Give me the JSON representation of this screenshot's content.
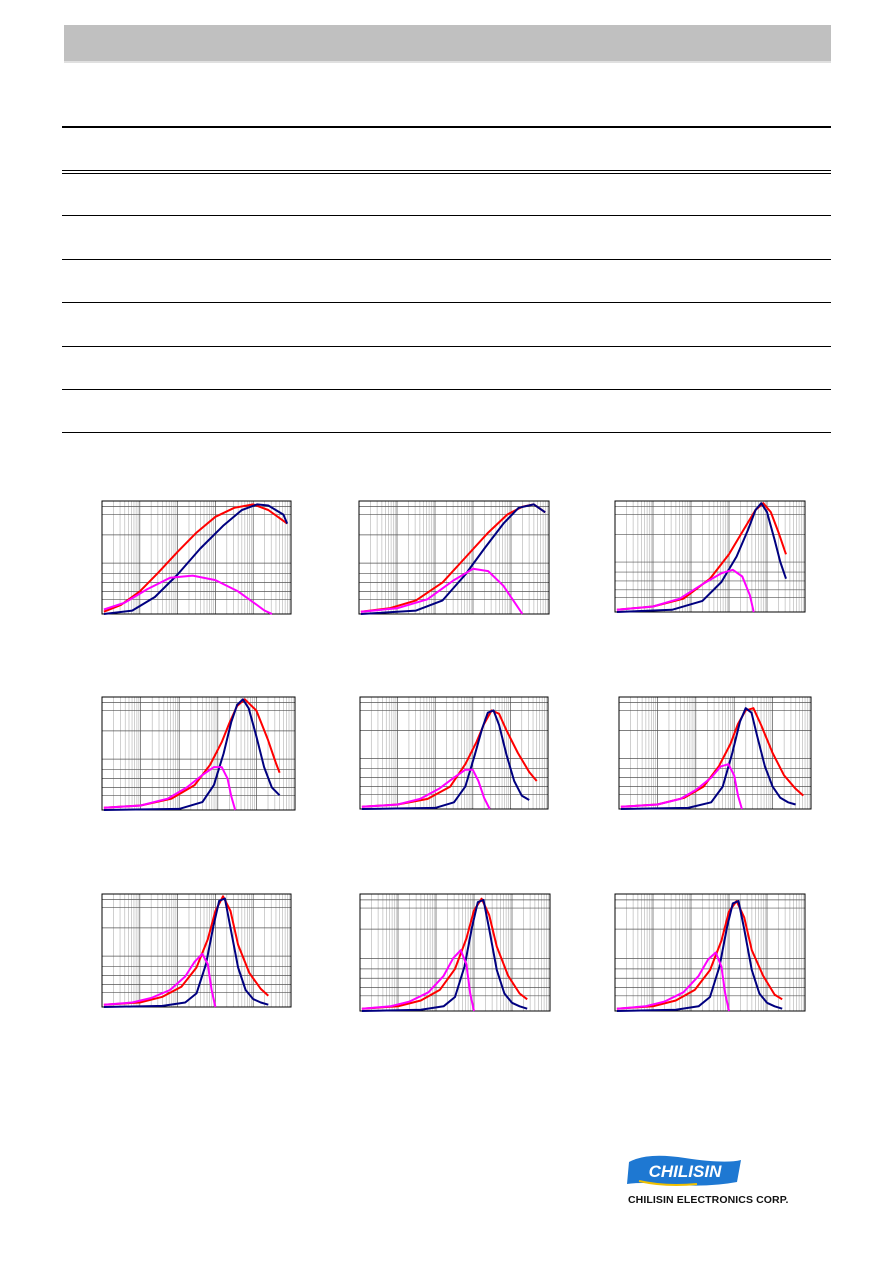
{
  "colors": {
    "red": "#ff0000",
    "navy": "#000080",
    "magenta": "#ff00ff",
    "header": "#c0c0c0",
    "brand_blue": "#1e78d2"
  },
  "logo": {
    "mark_text": "CHILISIN",
    "company": "CHILISIN ELECTRONICS CORP."
  },
  "chart_data": [
    {
      "type": "line",
      "series": [
        {
          "color": "red",
          "x": [
            0.05,
            0.5,
            1,
            1.5,
            2,
            2.5,
            3,
            3.5,
            4,
            4.4,
            4.9
          ],
          "y": [
            0.02,
            0.08,
            0.2,
            0.37,
            0.55,
            0.72,
            0.86,
            0.94,
            0.97,
            0.92,
            0.8
          ]
        },
        {
          "color": "navy",
          "x": [
            0.05,
            0.8,
            1.4,
            2,
            2.6,
            3.2,
            3.7,
            4.1,
            4.4,
            4.8,
            4.9
          ],
          "y": [
            0,
            0.03,
            0.15,
            0.35,
            0.58,
            0.78,
            0.92,
            0.97,
            0.96,
            0.88,
            0.8
          ]
        },
        {
          "color": "magenta",
          "x": [
            0.05,
            0.6,
            1.2,
            1.8,
            2.4,
            3,
            3.6,
            4.1,
            4.3,
            4.5
          ],
          "y": [
            0.04,
            0.1,
            0.22,
            0.32,
            0.34,
            0.3,
            0.2,
            0.08,
            0.03,
            0
          ]
        }
      ]
    },
    {
      "type": "line",
      "series": [
        {
          "color": "red",
          "x": [
            0.05,
            0.8,
            1.5,
            2.2,
            2.8,
            3.4,
            3.9,
            4.3,
            4.6,
            4.9
          ],
          "y": [
            0.02,
            0.05,
            0.12,
            0.28,
            0.5,
            0.72,
            0.88,
            0.95,
            0.97,
            0.9
          ]
        },
        {
          "color": "navy",
          "x": [
            0.05,
            1.5,
            2.2,
            2.8,
            3.3,
            3.8,
            4.2,
            4.6,
            4.9
          ],
          "y": [
            0,
            0.03,
            0.12,
            0.35,
            0.58,
            0.8,
            0.94,
            0.97,
            0.9
          ]
        },
        {
          "color": "magenta",
          "x": [
            0.05,
            1,
            1.8,
            2.5,
            3,
            3.4,
            3.8,
            4.1,
            4.3
          ],
          "y": [
            0.02,
            0.05,
            0.13,
            0.3,
            0.4,
            0.38,
            0.25,
            0.1,
            0
          ]
        }
      ]
    },
    {
      "type": "line",
      "series": [
        {
          "color": "red",
          "x": [
            0.05,
            1,
            1.8,
            2.5,
            3,
            3.4,
            3.7,
            3.9,
            4.1,
            4.3,
            4.5
          ],
          "y": [
            0.02,
            0.05,
            0.12,
            0.3,
            0.52,
            0.75,
            0.92,
            0.98,
            0.9,
            0.72,
            0.52
          ]
        },
        {
          "color": "navy",
          "x": [
            0.05,
            1.5,
            2.3,
            2.8,
            3.2,
            3.5,
            3.7,
            3.85,
            4,
            4.2,
            4.35,
            4.5
          ],
          "y": [
            0,
            0.02,
            0.1,
            0.27,
            0.5,
            0.74,
            0.92,
            0.98,
            0.9,
            0.65,
            0.45,
            0.3
          ]
        },
        {
          "color": "magenta",
          "x": [
            0.05,
            1,
            1.7,
            2.3,
            2.8,
            3.1,
            3.35,
            3.55,
            3.65
          ],
          "y": [
            0.02,
            0.05,
            0.12,
            0.25,
            0.35,
            0.38,
            0.32,
            0.15,
            0
          ]
        }
      ]
    },
    {
      "type": "line",
      "series": [
        {
          "color": "red",
          "x": [
            0.05,
            1,
            1.8,
            2.4,
            2.8,
            3.1,
            3.3,
            3.5,
            3.7,
            4,
            4.3,
            4.5,
            4.6
          ],
          "y": [
            0.02,
            0.04,
            0.1,
            0.22,
            0.4,
            0.6,
            0.77,
            0.92,
            0.98,
            0.88,
            0.62,
            0.42,
            0.33
          ]
        },
        {
          "color": "navy",
          "x": [
            0.05,
            2,
            2.6,
            2.9,
            3.15,
            3.35,
            3.5,
            3.65,
            3.8,
            4,
            4.2,
            4.4,
            4.6
          ],
          "y": [
            0,
            0.01,
            0.07,
            0.22,
            0.5,
            0.78,
            0.93,
            0.98,
            0.9,
            0.65,
            0.38,
            0.2,
            0.13
          ]
        },
        {
          "color": "magenta",
          "x": [
            0.05,
            1,
            1.7,
            2.2,
            2.6,
            2.9,
            3.1,
            3.25,
            3.35,
            3.45
          ],
          "y": [
            0.02,
            0.04,
            0.1,
            0.2,
            0.31,
            0.38,
            0.38,
            0.28,
            0.12,
            0
          ]
        }
      ]
    },
    {
      "type": "line",
      "series": [
        {
          "color": "red",
          "x": [
            0.05,
            1,
            1.8,
            2.4,
            2.8,
            3.1,
            3.3,
            3.5,
            3.7,
            3.9,
            4.2,
            4.5,
            4.7
          ],
          "y": [
            0.02,
            0.04,
            0.09,
            0.2,
            0.4,
            0.6,
            0.76,
            0.88,
            0.85,
            0.7,
            0.5,
            0.33,
            0.25
          ]
        },
        {
          "color": "navy",
          "x": [
            0.05,
            2,
            2.5,
            2.8,
            3.05,
            3.25,
            3.4,
            3.55,
            3.7,
            3.9,
            4.1,
            4.3,
            4.5
          ],
          "y": [
            0,
            0.01,
            0.06,
            0.2,
            0.48,
            0.72,
            0.86,
            0.88,
            0.75,
            0.48,
            0.25,
            0.12,
            0.08
          ]
        },
        {
          "color": "magenta",
          "x": [
            0.05,
            1,
            1.6,
            2.1,
            2.5,
            2.8,
            3,
            3.15,
            3.3,
            3.45
          ],
          "y": [
            0.02,
            0.04,
            0.09,
            0.18,
            0.28,
            0.35,
            0.35,
            0.25,
            0.1,
            0
          ]
        }
      ]
    },
    {
      "type": "line",
      "series": [
        {
          "color": "red",
          "x": [
            0.05,
            1,
            1.7,
            2.2,
            2.6,
            2.9,
            3.1,
            3.3,
            3.5,
            3.7,
            4,
            4.3,
            4.6,
            4.8
          ],
          "y": [
            0.02,
            0.04,
            0.1,
            0.2,
            0.38,
            0.58,
            0.76,
            0.88,
            0.9,
            0.75,
            0.5,
            0.3,
            0.18,
            0.12
          ]
        },
        {
          "color": "navy",
          "x": [
            0.05,
            1.8,
            2.4,
            2.7,
            2.95,
            3.15,
            3.3,
            3.45,
            3.6,
            3.8,
            4,
            4.2,
            4.4,
            4.6
          ],
          "y": [
            0,
            0.01,
            0.06,
            0.2,
            0.5,
            0.78,
            0.9,
            0.86,
            0.65,
            0.38,
            0.2,
            0.1,
            0.06,
            0.04
          ]
        },
        {
          "color": "magenta",
          "x": [
            0.05,
            1,
            1.6,
            2,
            2.4,
            2.65,
            2.85,
            3,
            3.1,
            3.2
          ],
          "y": [
            0.02,
            0.04,
            0.09,
            0.17,
            0.28,
            0.38,
            0.4,
            0.3,
            0.12,
            0
          ]
        }
      ]
    },
    {
      "type": "line",
      "series": [
        {
          "color": "red",
          "x": [
            0.05,
            1,
            1.6,
            2.1,
            2.5,
            2.8,
            3,
            3.2,
            3.4,
            3.6,
            3.9,
            4.2,
            4.4
          ],
          "y": [
            0.02,
            0.04,
            0.09,
            0.18,
            0.35,
            0.6,
            0.85,
            0.98,
            0.85,
            0.55,
            0.3,
            0.16,
            0.1
          ]
        },
        {
          "color": "navy",
          "x": [
            0.05,
            1.6,
            2.2,
            2.5,
            2.75,
            2.95,
            3.1,
            3.25,
            3.4,
            3.6,
            3.8,
            4,
            4.2,
            4.4
          ],
          "y": [
            0,
            0.01,
            0.04,
            0.12,
            0.38,
            0.72,
            0.94,
            0.96,
            0.7,
            0.35,
            0.15,
            0.07,
            0.04,
            0.02
          ]
        },
        {
          "color": "magenta",
          "x": [
            0.05,
            0.8,
            1.3,
            1.8,
            2.2,
            2.45,
            2.65,
            2.8,
            2.9,
            3
          ],
          "y": [
            0.02,
            0.04,
            0.08,
            0.15,
            0.27,
            0.4,
            0.47,
            0.38,
            0.15,
            0
          ]
        }
      ]
    },
    {
      "type": "line",
      "series": [
        {
          "color": "red",
          "x": [
            0.05,
            1,
            1.6,
            2.1,
            2.5,
            2.8,
            3,
            3.2,
            3.4,
            3.6,
            3.9,
            4.2,
            4.4
          ],
          "y": [
            0.02,
            0.04,
            0.09,
            0.18,
            0.36,
            0.62,
            0.86,
            0.96,
            0.82,
            0.55,
            0.3,
            0.15,
            0.1
          ]
        },
        {
          "color": "navy",
          "x": [
            0.05,
            1.6,
            2.2,
            2.5,
            2.75,
            2.95,
            3.1,
            3.25,
            3.4,
            3.6,
            3.8,
            4,
            4.2,
            4.4
          ],
          "y": [
            0,
            0.01,
            0.04,
            0.12,
            0.38,
            0.72,
            0.93,
            0.95,
            0.7,
            0.35,
            0.15,
            0.07,
            0.04,
            0.02
          ]
        },
        {
          "color": "magenta",
          "x": [
            0.05,
            0.8,
            1.3,
            1.8,
            2.2,
            2.45,
            2.65,
            2.8,
            2.9,
            3
          ],
          "y": [
            0.02,
            0.04,
            0.08,
            0.16,
            0.3,
            0.45,
            0.52,
            0.4,
            0.15,
            0
          ]
        }
      ]
    },
    {
      "type": "line",
      "series": [
        {
          "color": "red",
          "x": [
            0.05,
            1,
            1.6,
            2.1,
            2.5,
            2.8,
            3,
            3.2,
            3.4,
            3.6,
            3.9,
            4.2,
            4.4
          ],
          "y": [
            0.02,
            0.04,
            0.09,
            0.18,
            0.35,
            0.6,
            0.85,
            0.94,
            0.8,
            0.52,
            0.3,
            0.14,
            0.1
          ]
        },
        {
          "color": "navy",
          "x": [
            0.05,
            1.6,
            2.2,
            2.5,
            2.75,
            2.95,
            3.1,
            3.25,
            3.4,
            3.6,
            3.8,
            4,
            4.2,
            4.4
          ],
          "y": [
            0,
            0.01,
            0.04,
            0.12,
            0.38,
            0.72,
            0.92,
            0.94,
            0.7,
            0.35,
            0.15,
            0.07,
            0.04,
            0.02
          ]
        },
        {
          "color": "magenta",
          "x": [
            0.05,
            0.8,
            1.3,
            1.8,
            2.2,
            2.45,
            2.65,
            2.8,
            2.9,
            3
          ],
          "y": [
            0.02,
            0.04,
            0.08,
            0.16,
            0.3,
            0.44,
            0.5,
            0.38,
            0.15,
            0
          ]
        }
      ]
    }
  ]
}
